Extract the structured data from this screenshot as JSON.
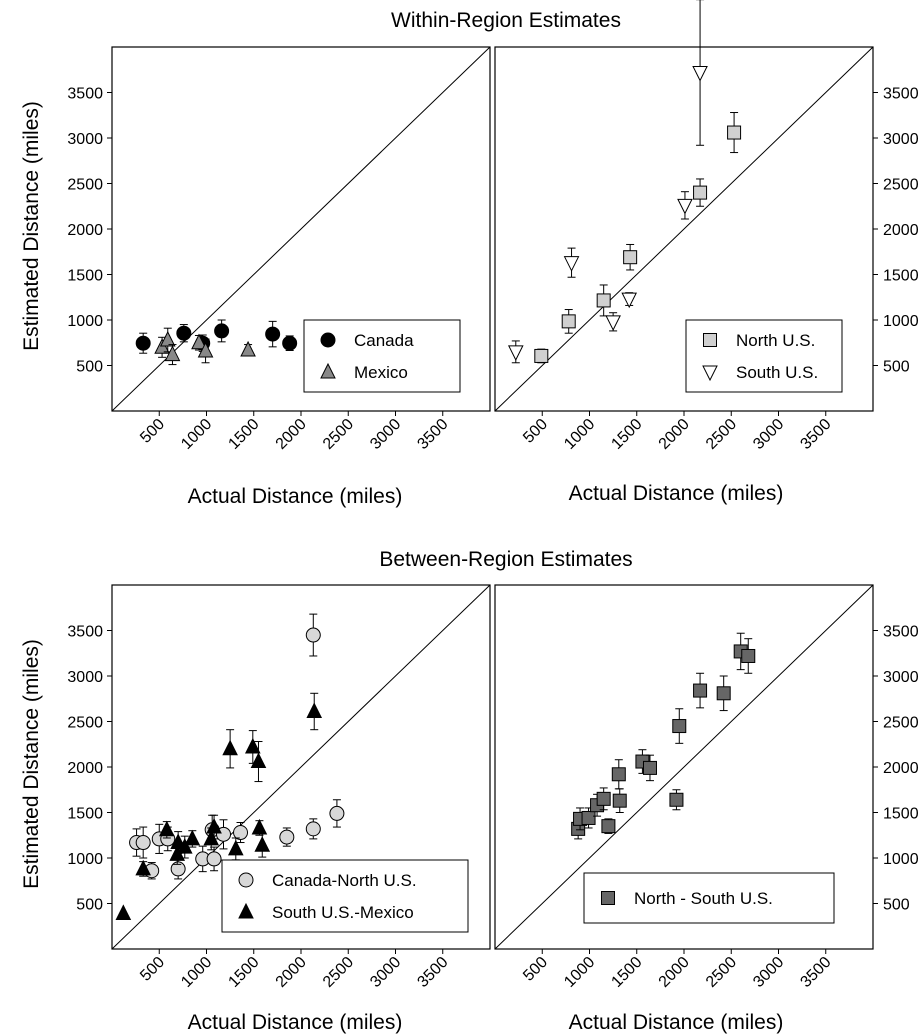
{
  "titles": {
    "top": "Within-Region Estimates",
    "bottom": "Between-Region Estimates"
  },
  "axis_labels": {
    "y": "Estimated Distance (miles)",
    "x": "Actual Distance (miles)"
  },
  "chart_data": [
    {
      "type": "scatter",
      "title": "Within-Region Estimates",
      "xlabel": "Actual Distance (miles)",
      "ylabel": "Estimated Distance (miles)",
      "xlim": [
        0,
        4000
      ],
      "ylim": [
        0,
        4000
      ],
      "x_ticks": [
        500,
        1000,
        1500,
        2000,
        2500,
        3000,
        3500
      ],
      "y_ticks": [
        500,
        1000,
        1500,
        2000,
        2500,
        3000,
        3500
      ],
      "identity_line": true,
      "legend_position": "bottom-right",
      "series": [
        {
          "name": "Canada",
          "marker": "circle",
          "fill": "#000000",
          "points": [
            {
              "x": 330,
              "y": 745,
              "err": 110
            },
            {
              "x": 960,
              "y": 745,
              "err": 90
            },
            {
              "x": 760,
              "y": 855,
              "err": 95
            },
            {
              "x": 1160,
              "y": 880,
              "err": 120
            },
            {
              "x": 1700,
              "y": 845,
              "err": 140
            },
            {
              "x": 1880,
              "y": 745,
              "err": 80
            }
          ]
        },
        {
          "name": "Mexico",
          "marker": "triangle-up",
          "fill": "#888888",
          "points": [
            {
              "x": 530,
              "y": 700,
              "err": 110
            },
            {
              "x": 590,
              "y": 780,
              "err": 130
            },
            {
              "x": 640,
              "y": 620,
              "err": 110
            },
            {
              "x": 920,
              "y": 750,
              "err": 80
            },
            {
              "x": 990,
              "y": 660,
              "err": 130
            },
            {
              "x": 1440,
              "y": 670,
              "err": 60
            }
          ]
        }
      ]
    },
    {
      "type": "scatter",
      "xlabel": "Actual Distance (miles)",
      "xlim": [
        0,
        4000
      ],
      "ylim": [
        0,
        4000
      ],
      "x_ticks": [
        500,
        1000,
        1500,
        2000,
        2500,
        3000,
        3500
      ],
      "y_ticks": [
        500,
        1000,
        1500,
        2000,
        2500,
        3000,
        3500
      ],
      "identity_line": true,
      "legend_position": "bottom-right",
      "series": [
        {
          "name": "North U.S.",
          "marker": "square",
          "fill": "#d0d0d0",
          "points": [
            {
              "x": 490,
              "y": 605,
              "err": 75
            },
            {
              "x": 780,
              "y": 985,
              "err": 130
            },
            {
              "x": 1150,
              "y": 1215,
              "err": 170
            },
            {
              "x": 1430,
              "y": 1690,
              "err": 140
            },
            {
              "x": 2170,
              "y": 2400,
              "err": 150
            },
            {
              "x": 2530,
              "y": 3060,
              "err": 220
            }
          ]
        },
        {
          "name": "South U.S.",
          "marker": "triangle-down",
          "fill": "#ffffff",
          "points": [
            {
              "x": 220,
              "y": 650,
              "err": 120
            },
            {
              "x": 810,
              "y": 1630,
              "err": 160
            },
            {
              "x": 1250,
              "y": 980,
              "err": 100
            },
            {
              "x": 1420,
              "y": 1230,
              "err": 70
            },
            {
              "x": 2010,
              "y": 2260,
              "err": 150
            },
            {
              "x": 2170,
              "y": 3720,
              "err": 800
            }
          ]
        }
      ]
    },
    {
      "type": "scatter",
      "title": "Between-Region Estimates",
      "xlabel": "Actual Distance (miles)",
      "ylabel": "Estimated Distance (miles)",
      "xlim": [
        0,
        4000
      ],
      "ylim": [
        0,
        4000
      ],
      "x_ticks": [
        500,
        1000,
        1500,
        2000,
        2500,
        3000,
        3500
      ],
      "y_ticks": [
        500,
        1000,
        1500,
        2000,
        2500,
        3000,
        3500
      ],
      "identity_line": true,
      "legend_position": "bottom-right",
      "series": [
        {
          "name": "Canada-North U.S.",
          "marker": "circle",
          "fill": "#d8d8d8",
          "points": [
            {
              "x": 260,
              "y": 1170,
              "err": 150
            },
            {
              "x": 330,
              "y": 1170,
              "err": 170
            },
            {
              "x": 420,
              "y": 860,
              "err": 90
            },
            {
              "x": 500,
              "y": 1210,
              "err": 160
            },
            {
              "x": 590,
              "y": 1210,
              "err": 130
            },
            {
              "x": 700,
              "y": 880,
              "err": 110
            },
            {
              "x": 960,
              "y": 990,
              "err": 140
            },
            {
              "x": 1060,
              "y": 1310,
              "err": 160
            },
            {
              "x": 1080,
              "y": 990,
              "err": 130
            },
            {
              "x": 1180,
              "y": 1260,
              "err": 160
            },
            {
              "x": 1360,
              "y": 1280,
              "err": 110
            },
            {
              "x": 1850,
              "y": 1230,
              "err": 100
            },
            {
              "x": 2130,
              "y": 1320,
              "err": 110
            },
            {
              "x": 2130,
              "y": 3450,
              "err": 230
            },
            {
              "x": 2380,
              "y": 1490,
              "err": 150
            }
          ]
        },
        {
          "name": "South U.S.-Mexico",
          "marker": "triangle-up",
          "fill": "#000000",
          "points": [
            {
              "x": 120,
              "y": 390,
              "err": 0
            },
            {
              "x": 330,
              "y": 880,
              "err": 80
            },
            {
              "x": 580,
              "y": 1310,
              "err": 90
            },
            {
              "x": 690,
              "y": 1040,
              "err": 110
            },
            {
              "x": 700,
              "y": 1170,
              "err": 120
            },
            {
              "x": 770,
              "y": 1120,
              "err": 120
            },
            {
              "x": 850,
              "y": 1210,
              "err": 90
            },
            {
              "x": 1050,
              "y": 1210,
              "err": 120
            },
            {
              "x": 1080,
              "y": 1340,
              "err": 130
            },
            {
              "x": 1250,
              "y": 2200,
              "err": 210
            },
            {
              "x": 1310,
              "y": 1100,
              "err": 120
            },
            {
              "x": 1490,
              "y": 2220,
              "err": 180
            },
            {
              "x": 1550,
              "y": 2060,
              "err": 220
            },
            {
              "x": 1560,
              "y": 1330,
              "err": 80
            },
            {
              "x": 1590,
              "y": 1140,
              "err": 130
            },
            {
              "x": 2140,
              "y": 2610,
              "err": 200
            }
          ]
        }
      ]
    },
    {
      "type": "scatter",
      "xlabel": "Actual Distance (miles)",
      "xlim": [
        0,
        4000
      ],
      "ylim": [
        0,
        4000
      ],
      "x_ticks": [
        500,
        1000,
        1500,
        2000,
        2500,
        3000,
        3500
      ],
      "y_ticks": [
        500,
        1000,
        1500,
        2000,
        2500,
        3000,
        3500
      ],
      "identity_line": true,
      "legend_position": "bottom-right",
      "series": [
        {
          "name": "North - South U.S.",
          "marker": "square",
          "fill": "#666666",
          "points": [
            {
              "x": 880,
              "y": 1320,
              "err": 110
            },
            {
              "x": 900,
              "y": 1430,
              "err": 120
            },
            {
              "x": 990,
              "y": 1440,
              "err": 110
            },
            {
              "x": 1080,
              "y": 1580,
              "err": 120
            },
            {
              "x": 1150,
              "y": 1650,
              "err": 120
            },
            {
              "x": 1200,
              "y": 1350,
              "err": 80
            },
            {
              "x": 1310,
              "y": 1920,
              "err": 160
            },
            {
              "x": 1320,
              "y": 1630,
              "err": 130
            },
            {
              "x": 1560,
              "y": 2060,
              "err": 130
            },
            {
              "x": 1640,
              "y": 1990,
              "err": 140
            },
            {
              "x": 1920,
              "y": 1640,
              "err": 110
            },
            {
              "x": 1950,
              "y": 2450,
              "err": 190
            },
            {
              "x": 2170,
              "y": 2840,
              "err": 190
            },
            {
              "x": 2420,
              "y": 2810,
              "err": 190
            },
            {
              "x": 2600,
              "y": 3270,
              "err": 200
            },
            {
              "x": 2680,
              "y": 3220,
              "err": 190
            }
          ]
        }
      ]
    }
  ],
  "colors": {
    "axis": "#000000",
    "marker_stroke": "#000000"
  }
}
